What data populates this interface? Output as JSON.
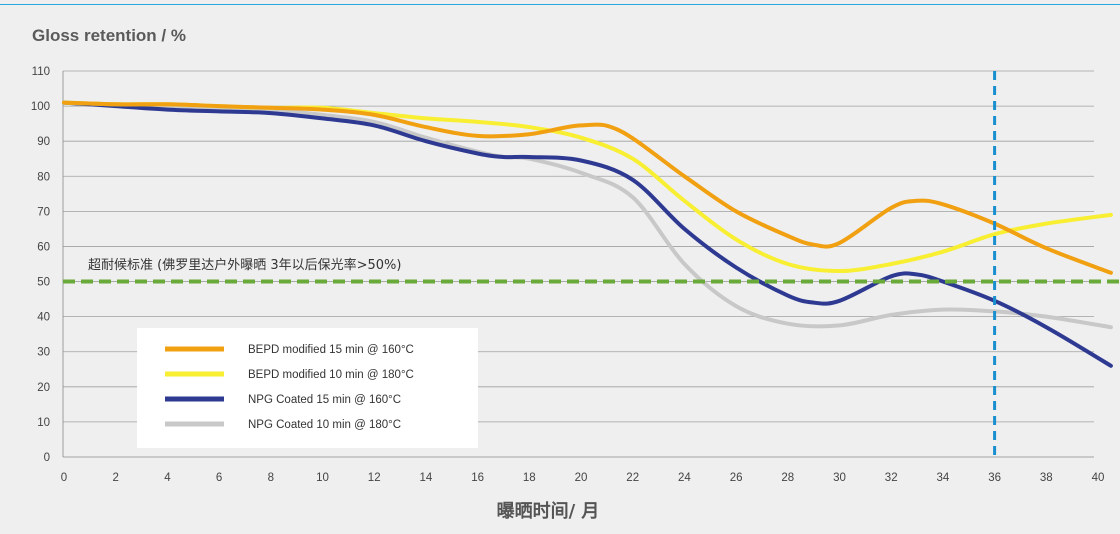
{
  "chart_data": {
    "type": "line",
    "title": "",
    "ylabel": "Gloss retention / %",
    "xlabel": "曝晒时间/ 月",
    "xlim": [
      0,
      40.5
    ],
    "ylim": [
      0,
      110
    ],
    "x_ticks": [
      0,
      2,
      4,
      6,
      8,
      10,
      12,
      14,
      16,
      18,
      20,
      22,
      24,
      26,
      28,
      30,
      32,
      34,
      36,
      38,
      40
    ],
    "y_ticks": [
      0,
      10,
      20,
      30,
      40,
      50,
      60,
      70,
      80,
      90,
      100,
      110
    ],
    "grid": "horizontal",
    "legend_position": "lower-left",
    "reference_lines": [
      {
        "type": "horizontal",
        "y": 50,
        "color": "#6aaa3a",
        "style": "dashed",
        "label": "超耐候标准 (佛罗里达户外曝晒 3年以后保光率>50%)"
      },
      {
        "type": "vertical",
        "x": 36,
        "color": "#1a8fd0",
        "style": "dashed"
      }
    ],
    "series": [
      {
        "name": "BEPD modified 15 min @ 160°C",
        "color": "#f0a010",
        "x": [
          0,
          2,
          4,
          6,
          8,
          10,
          12,
          14,
          16,
          18,
          20,
          21.5,
          24,
          26,
          28,
          29,
          30,
          32,
          33,
          34,
          36,
          38,
          40.5
        ],
        "y": [
          101,
          100.5,
          100.5,
          100,
          99.5,
          99,
          97.5,
          94,
          91.5,
          92,
          94.5,
          93,
          80,
          70,
          63,
          60.5,
          61,
          71,
          73,
          72,
          66.5,
          59.5,
          52.5
        ]
      },
      {
        "name": "BEPD modified 10 min @ 180°C",
        "color": "#f8ee32",
        "x": [
          0,
          2,
          4,
          6,
          8,
          10,
          12,
          14,
          16,
          18,
          20,
          22,
          24,
          26,
          28,
          30,
          32,
          34,
          36,
          38,
          40.5
        ],
        "y": [
          101,
          100.5,
          100.5,
          100,
          99.5,
          99.5,
          98,
          96.5,
          95.5,
          94,
          91,
          85,
          73,
          62,
          55,
          53,
          55,
          58.5,
          63.5,
          66.5,
          69
        ]
      },
      {
        "name": "NPG Coated 15 min @ 160°C",
        "color": "#2e3a92",
        "x": [
          0,
          2,
          4,
          6,
          8,
          10,
          12,
          14,
          16,
          17,
          18,
          20,
          22,
          24,
          26,
          28,
          29,
          30,
          32,
          33,
          34,
          36,
          38,
          40.5
        ],
        "y": [
          101,
          100,
          99,
          98.5,
          98,
          96.5,
          94.5,
          90,
          86.5,
          85.5,
          85.5,
          84.5,
          79,
          65,
          54,
          46,
          44,
          44.5,
          51.5,
          52,
          50,
          44.5,
          37,
          26
        ]
      },
      {
        "name": "NPG Coated 10 min @ 180°C",
        "color": "#c8c8c8",
        "x": [
          0,
          2,
          4,
          6,
          8,
          10,
          12,
          14,
          16,
          17,
          18,
          20,
          22,
          24,
          26,
          28,
          30,
          32,
          34,
          36,
          38,
          40.5
        ],
        "y": [
          101,
          100.5,
          100,
          99.5,
          99,
          97.5,
          95.5,
          91,
          87,
          85.5,
          85,
          81,
          74,
          55,
          43,
          38,
          37.5,
          40.5,
          42,
          41.5,
          40,
          37
        ]
      }
    ]
  }
}
